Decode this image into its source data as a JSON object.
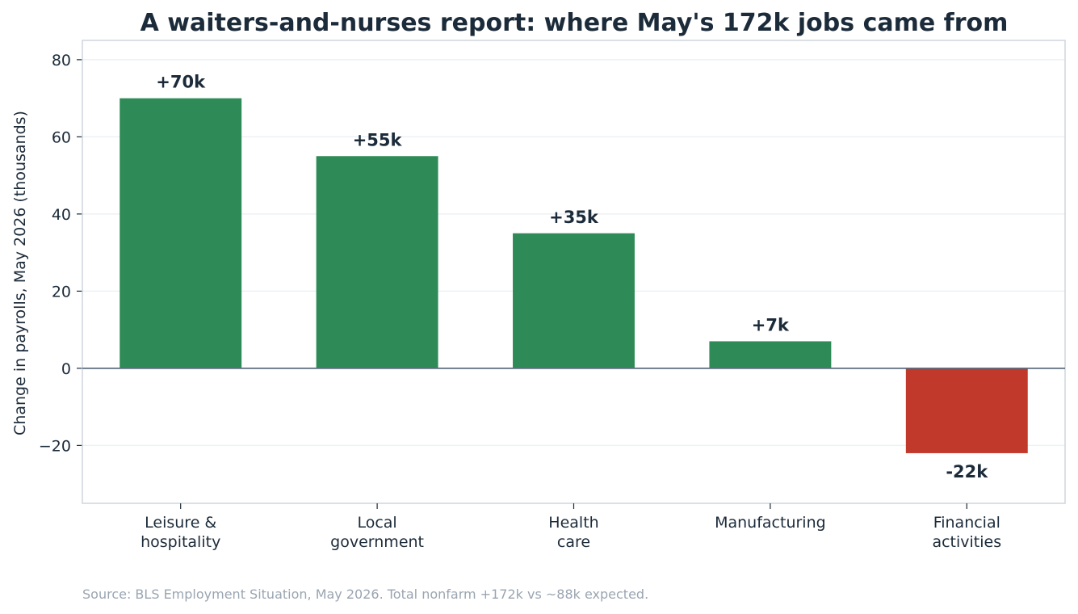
{
  "chart_data": {
    "type": "bar",
    "title": "A waiters-and-nurses report: where May's 172k jobs came from",
    "ylabel": "Change in payrolls, May 2026 (thousands)",
    "xlabel": "",
    "categories": [
      [
        "Leisure &",
        "hospitality"
      ],
      [
        "Local",
        "government"
      ],
      [
        "Health",
        "care"
      ],
      [
        "Manufacturing"
      ],
      [
        "Financial",
        "activities"
      ]
    ],
    "values": [
      70,
      55,
      35,
      7,
      -22
    ],
    "data_labels": [
      "+70k",
      "+55k",
      "+35k",
      "+7k",
      "-22k"
    ],
    "ylim": [
      -35,
      85
    ],
    "yticks": [
      -20,
      0,
      20,
      40,
      60,
      80
    ],
    "ytick_labels": [
      "−20",
      "0",
      "20",
      "40",
      "60",
      "80"
    ],
    "grid": true,
    "colors": {
      "positive": "#2e8b57",
      "negative": "#c0392b",
      "text": "#1c2b3a",
      "axis": "#cdd6dd",
      "grid": "#edf1f4",
      "zero_line": "#5d6d7e",
      "source": "#9aa5b1"
    }
  },
  "source_note": "Source: BLS Employment Situation, May 2026. Total nonfarm +172k vs ~88k expected."
}
